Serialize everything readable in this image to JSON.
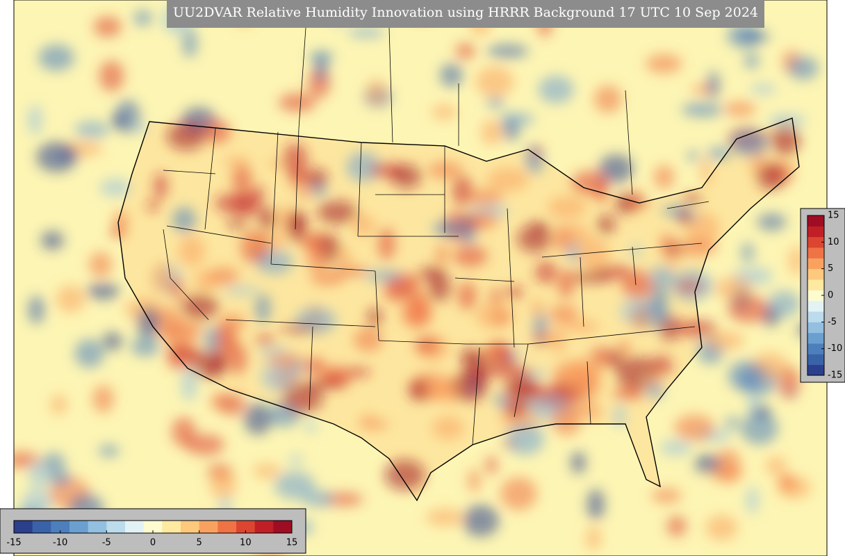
{
  "title": "UU2DVAR Relative Humidity Innovation using HRRR Background 17 UTC 10 Sep 2024",
  "colorbar": {
    "range": [
      -15,
      15
    ],
    "ticks": [
      -15,
      -10,
      -5,
      0,
      5,
      10,
      15
    ],
    "colors": [
      "#2b3f8c",
      "#3a62a8",
      "#4d7fbd",
      "#6b9fd0",
      "#93bfe0",
      "#bcdbec",
      "#e3f2f4",
      "#fdfbd0",
      "#fee9a0",
      "#fdc97c",
      "#f9a25f",
      "#ef7345",
      "#dc4631",
      "#c11f27",
      "#9e0d23"
    ]
  }
}
